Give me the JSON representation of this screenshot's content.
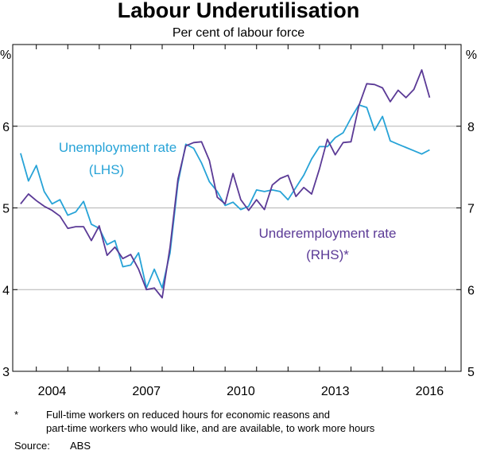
{
  "chart_data": {
    "type": "line",
    "title": "Labour Underutilisation",
    "subtitle": "Per cent of labour force",
    "left_axis": {
      "unit": "%",
      "ylim": [
        3,
        7
      ],
      "ticks": [
        3,
        4,
        5,
        6
      ]
    },
    "right_axis": {
      "unit": "%",
      "ylim": [
        5,
        9
      ],
      "ticks": [
        5,
        6,
        7,
        8
      ]
    },
    "xlim": [
      2003.25,
      2017.5
    ],
    "x_ticks": [
      {
        "value": 2004,
        "label": "2004"
      },
      {
        "value": 2007,
        "label": "2007"
      },
      {
        "value": 2010,
        "label": "2010"
      },
      {
        "value": 2013,
        "label": "2013"
      },
      {
        "value": 2016,
        "label": "2016"
      }
    ],
    "grid": true,
    "series": [
      {
        "name": "Unemployment rate",
        "label_lines": [
          "Unemployment rate",
          "(LHS)"
        ],
        "axis": "left",
        "color": "#27a3d7",
        "x": [
          2003.5,
          2003.75,
          2004.0,
          2004.25,
          2004.5,
          2004.75,
          2005.0,
          2005.25,
          2005.5,
          2005.75,
          2006.0,
          2006.25,
          2006.5,
          2006.75,
          2007.0,
          2007.25,
          2007.5,
          2007.75,
          2008.0,
          2008.25,
          2008.5,
          2008.75,
          2009.0,
          2009.25,
          2009.5,
          2009.75,
          2010.0,
          2010.25,
          2010.5,
          2010.75,
          2011.0,
          2011.25,
          2011.5,
          2011.75,
          2012.0,
          2012.25,
          2012.5,
          2012.75,
          2013.0,
          2013.25,
          2013.5,
          2013.75,
          2014.0,
          2014.25,
          2014.5,
          2014.75,
          2015.0,
          2015.25,
          2015.5,
          2015.75,
          2016.0,
          2016.25,
          2016.5
        ],
        "y": [
          5.67,
          5.33,
          5.52,
          5.2,
          5.05,
          5.1,
          4.91,
          4.95,
          5.08,
          4.8,
          4.75,
          4.55,
          4.6,
          4.28,
          4.3,
          4.45,
          4.02,
          4.25,
          4.02,
          4.45,
          5.3,
          5.78,
          5.73,
          5.55,
          5.32,
          5.2,
          5.03,
          5.07,
          4.98,
          5.02,
          5.22,
          5.2,
          5.22,
          5.2,
          5.1,
          5.25,
          5.4,
          5.6,
          5.75,
          5.75,
          5.86,
          5.92,
          6.1,
          6.26,
          6.23,
          5.95,
          6.12,
          5.82,
          5.78,
          5.74,
          5.7,
          5.66,
          5.71
        ]
      },
      {
        "name": "Underemployment rate",
        "label_lines": [
          "Underemployment rate",
          "(RHS)*"
        ],
        "axis": "right",
        "color": "#5b3a96",
        "x": [
          2003.5,
          2003.75,
          2004.0,
          2004.25,
          2004.5,
          2004.75,
          2005.0,
          2005.25,
          2005.5,
          2005.75,
          2006.0,
          2006.25,
          2006.5,
          2006.75,
          2007.0,
          2007.25,
          2007.5,
          2007.75,
          2008.0,
          2008.25,
          2008.5,
          2008.75,
          2009.0,
          2009.25,
          2009.5,
          2009.75,
          2010.0,
          2010.25,
          2010.5,
          2010.75,
          2011.0,
          2011.25,
          2011.5,
          2011.75,
          2012.0,
          2012.25,
          2012.5,
          2012.75,
          2013.0,
          2013.25,
          2013.5,
          2013.75,
          2014.0,
          2014.25,
          2014.5,
          2014.75,
          2015.0,
          2015.25,
          2015.5,
          2015.75,
          2016.0,
          2016.25,
          2016.5
        ],
        "y": [
          7.05,
          7.17,
          7.09,
          7.02,
          6.97,
          6.9,
          6.75,
          6.77,
          6.77,
          6.6,
          6.78,
          6.42,
          6.52,
          6.38,
          6.43,
          6.25,
          6.0,
          6.02,
          5.9,
          6.52,
          7.35,
          7.76,
          7.8,
          7.81,
          7.58,
          7.13,
          7.05,
          7.42,
          7.1,
          6.97,
          7.1,
          6.98,
          7.28,
          7.36,
          7.4,
          7.14,
          7.25,
          7.17,
          7.48,
          7.84,
          7.65,
          7.8,
          7.81,
          8.25,
          8.52,
          8.51,
          8.47,
          8.3,
          8.44,
          8.35,
          8.45,
          8.69,
          8.35
        ]
      }
    ]
  },
  "footnote": {
    "marker": "*",
    "lines": [
      "Full-time workers on reduced hours for economic reasons and",
      "part-time workers who would like, and are available, to work more hours"
    ]
  },
  "source": {
    "label": "Source:",
    "value": "ABS"
  }
}
